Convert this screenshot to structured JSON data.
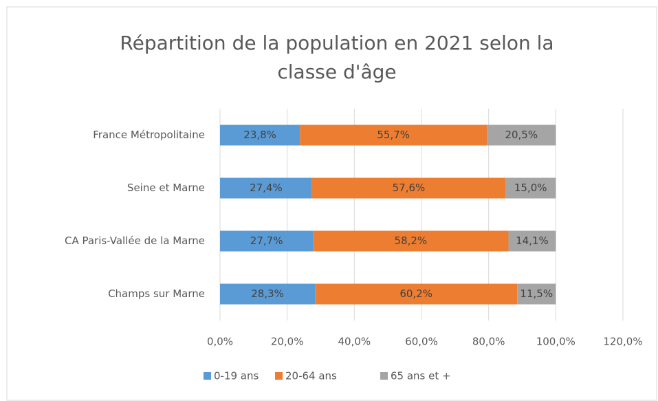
{
  "chart_data": {
    "type": "stacked-bar-horizontal",
    "title": "Répartition de la population en 2021 selon la classe d'âge",
    "categories": [
      "France Métropolitaine",
      "Seine et Marne",
      "CA Paris-Vallée de la Marne",
      "Champs sur Marne"
    ],
    "series": [
      {
        "name": "0-19 ans",
        "color": "#5b9bd5",
        "values": [
          23.8,
          27.4,
          27.7,
          28.3
        ],
        "value_labels": [
          "23,8%",
          "27,4%",
          "27,7%",
          "28,3%"
        ]
      },
      {
        "name": "20-64 ans",
        "color": "#ed7d31",
        "values": [
          55.7,
          57.6,
          58.2,
          60.2
        ],
        "value_labels": [
          "55,7%",
          "57,6%",
          "58,2%",
          "60,2%"
        ]
      },
      {
        "name": "65 ans et +",
        "color": "#a5a5a5",
        "values": [
          20.5,
          15.0,
          14.1,
          11.5
        ],
        "value_labels": [
          "20,5%",
          "15,0%",
          "14,1%",
          "11,5%"
        ]
      }
    ],
    "xlim": [
      0,
      120
    ],
    "xticks": [
      {
        "value": 0,
        "label": "0,0%"
      },
      {
        "value": 20,
        "label": "20,0%"
      },
      {
        "value": 40,
        "label": "40,0%"
      },
      {
        "value": 60,
        "label": "60,0%"
      },
      {
        "value": 80,
        "label": "80,0%"
      },
      {
        "value": 100,
        "label": "100,0%"
      },
      {
        "value": 120,
        "label": "120,0%"
      }
    ],
    "grid": true,
    "legend": "bottom"
  }
}
